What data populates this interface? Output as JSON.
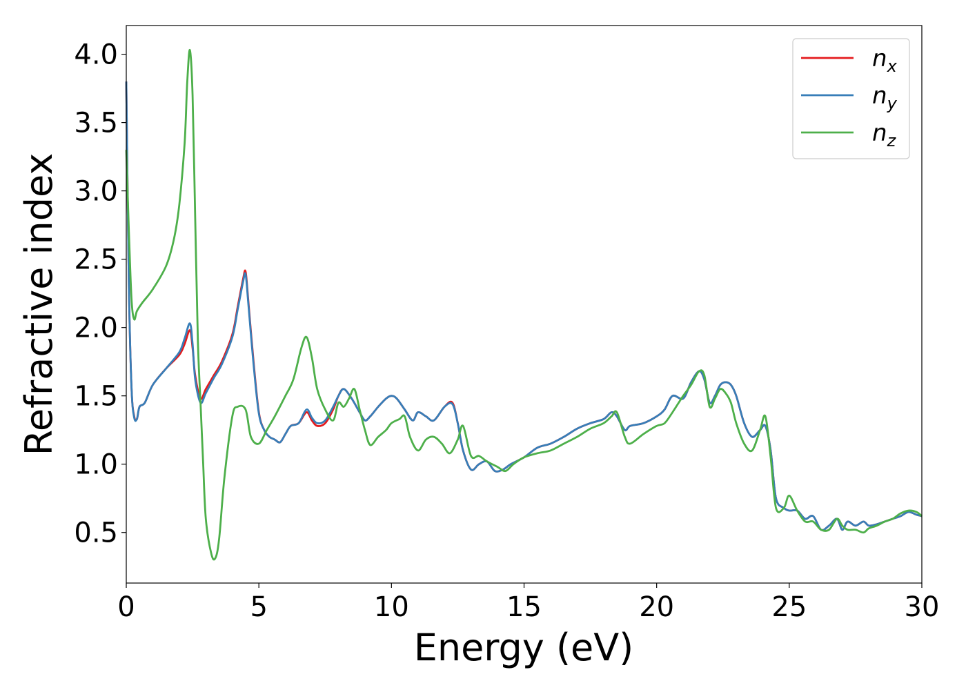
{
  "chart_data": {
    "type": "line",
    "xlabel": "Energy (eV)",
    "ylabel": "Refractive index",
    "xlim": [
      0,
      30
    ],
    "ylim": [
      0.13,
      4.21
    ],
    "xticks": [
      "0",
      "5",
      "10",
      "15",
      "20",
      "25",
      "30"
    ],
    "yticks": [
      "0.5",
      "1.0",
      "1.5",
      "2.0",
      "2.5",
      "3.0",
      "3.5",
      "4.0"
    ],
    "grid": false,
    "legend_position": "top-right",
    "series": [
      {
        "name": "n_x",
        "symbol": "n",
        "subscript": "x",
        "color": "#e41a1c",
        "x": [
          0,
          0.1,
          0.2,
          0.3,
          0.4,
          0.5,
          0.7,
          1.0,
          1.5,
          2.0,
          2.2,
          2.4,
          2.5,
          2.6,
          2.8,
          3.0,
          3.3,
          3.6,
          4.0,
          4.2,
          4.4,
          4.5,
          4.6,
          4.8,
          5.0,
          5.2,
          5.4,
          5.6,
          5.8,
          6.0,
          6.2,
          6.5,
          6.8,
          7.0,
          7.2,
          7.5,
          7.8,
          8.0,
          8.2,
          8.5,
          8.8,
          9.0,
          9.2,
          9.5,
          9.8,
          10.0,
          10.2,
          10.5,
          10.8,
          11.0,
          11.3,
          11.6,
          12.0,
          12.3,
          12.5,
          12.7,
          13.0,
          13.3,
          13.6,
          13.9,
          14.2,
          14.5,
          15.0,
          15.5,
          16.0,
          16.5,
          17.0,
          17.5,
          18.0,
          18.3,
          18.5,
          18.8,
          19.0,
          19.5,
          20.0,
          20.3,
          20.6,
          21.0,
          21.3,
          21.6,
          21.8,
          22.0,
          22.2,
          22.4,
          22.6,
          22.8,
          23.0,
          23.3,
          23.6,
          23.9,
          24.1,
          24.3,
          24.5,
          24.8,
          25.0,
          25.3,
          25.6,
          25.9,
          26.2,
          26.5,
          26.8,
          27.0,
          27.2,
          27.5,
          27.8,
          28.0,
          28.3,
          28.6,
          28.9,
          29.2,
          29.5,
          29.8,
          30.0
        ],
        "y": [
          3.8,
          2.3,
          1.55,
          1.35,
          1.33,
          1.42,
          1.45,
          1.58,
          1.7,
          1.8,
          1.88,
          1.98,
          1.85,
          1.65,
          1.48,
          1.55,
          1.65,
          1.75,
          1.95,
          2.15,
          2.35,
          2.41,
          2.2,
          1.75,
          1.38,
          1.25,
          1.2,
          1.18,
          1.16,
          1.22,
          1.28,
          1.3,
          1.38,
          1.32,
          1.28,
          1.3,
          1.4,
          1.5,
          1.55,
          1.48,
          1.38,
          1.32,
          1.35,
          1.42,
          1.48,
          1.5,
          1.48,
          1.4,
          1.32,
          1.38,
          1.35,
          1.32,
          1.42,
          1.45,
          1.3,
          1.1,
          0.96,
          1.0,
          1.02,
          0.95,
          0.96,
          1.0,
          1.05,
          1.12,
          1.15,
          1.2,
          1.26,
          1.3,
          1.33,
          1.38,
          1.35,
          1.25,
          1.28,
          1.3,
          1.35,
          1.4,
          1.5,
          1.48,
          1.6,
          1.68,
          1.62,
          1.45,
          1.5,
          1.58,
          1.6,
          1.58,
          1.5,
          1.3,
          1.2,
          1.25,
          1.28,
          1.1,
          0.75,
          0.68,
          0.66,
          0.66,
          0.6,
          0.62,
          0.52,
          0.55,
          0.6,
          0.52,
          0.58,
          0.55,
          0.58,
          0.55,
          0.56,
          0.58,
          0.6,
          0.62,
          0.65,
          0.63,
          0.62
        ]
      },
      {
        "name": "n_y",
        "symbol": "n",
        "subscript": "y",
        "color": "#377eb8",
        "x": [
          0,
          0.1,
          0.2,
          0.3,
          0.4,
          0.5,
          0.7,
          1.0,
          1.5,
          2.0,
          2.2,
          2.4,
          2.5,
          2.6,
          2.8,
          3.0,
          3.3,
          3.6,
          4.0,
          4.2,
          4.4,
          4.5,
          4.6,
          4.8,
          5.0,
          5.2,
          5.4,
          5.6,
          5.8,
          6.0,
          6.2,
          6.5,
          6.8,
          7.0,
          7.2,
          7.5,
          7.8,
          8.0,
          8.2,
          8.5,
          8.8,
          9.0,
          9.2,
          9.5,
          9.8,
          10.0,
          10.2,
          10.5,
          10.8,
          11.0,
          11.3,
          11.6,
          12.0,
          12.3,
          12.5,
          12.7,
          13.0,
          13.3,
          13.6,
          13.9,
          14.2,
          14.5,
          15.0,
          15.5,
          16.0,
          16.5,
          17.0,
          17.5,
          18.0,
          18.3,
          18.5,
          18.8,
          19.0,
          19.5,
          20.0,
          20.3,
          20.6,
          21.0,
          21.3,
          21.6,
          21.8,
          22.0,
          22.2,
          22.4,
          22.6,
          22.8,
          23.0,
          23.3,
          23.6,
          23.9,
          24.1,
          24.3,
          24.5,
          24.8,
          25.0,
          25.3,
          25.6,
          25.9,
          26.2,
          26.5,
          26.8,
          27.0,
          27.2,
          27.5,
          27.8,
          28.0,
          28.3,
          28.6,
          28.9,
          29.2,
          29.5,
          29.8,
          30.0
        ],
        "y": [
          3.8,
          2.3,
          1.55,
          1.34,
          1.33,
          1.42,
          1.45,
          1.58,
          1.7,
          1.82,
          1.92,
          2.03,
          1.88,
          1.62,
          1.45,
          1.52,
          1.63,
          1.73,
          1.93,
          2.13,
          2.33,
          2.39,
          2.18,
          1.73,
          1.37,
          1.25,
          1.2,
          1.18,
          1.16,
          1.22,
          1.28,
          1.3,
          1.4,
          1.34,
          1.3,
          1.32,
          1.42,
          1.5,
          1.55,
          1.48,
          1.38,
          1.32,
          1.35,
          1.42,
          1.48,
          1.5,
          1.48,
          1.4,
          1.32,
          1.38,
          1.35,
          1.32,
          1.42,
          1.44,
          1.3,
          1.1,
          0.96,
          1.0,
          1.02,
          0.95,
          0.96,
          1.0,
          1.05,
          1.12,
          1.15,
          1.2,
          1.26,
          1.3,
          1.33,
          1.38,
          1.35,
          1.25,
          1.28,
          1.3,
          1.35,
          1.4,
          1.5,
          1.48,
          1.6,
          1.68,
          1.62,
          1.45,
          1.5,
          1.58,
          1.6,
          1.58,
          1.5,
          1.3,
          1.2,
          1.25,
          1.28,
          1.1,
          0.75,
          0.68,
          0.66,
          0.66,
          0.6,
          0.62,
          0.52,
          0.55,
          0.6,
          0.52,
          0.58,
          0.55,
          0.58,
          0.55,
          0.56,
          0.58,
          0.6,
          0.62,
          0.65,
          0.63,
          0.62
        ]
      },
      {
        "name": "n_z",
        "symbol": "n",
        "subscript": "z",
        "color": "#4daf4a",
        "x": [
          0,
          0.1,
          0.2,
          0.3,
          0.4,
          0.6,
          1.0,
          1.5,
          1.8,
          2.0,
          2.2,
          2.3,
          2.4,
          2.5,
          2.6,
          2.7,
          2.8,
          2.9,
          3.0,
          3.2,
          3.35,
          3.5,
          3.7,
          4.0,
          4.2,
          4.5,
          4.7,
          5.0,
          5.3,
          5.6,
          6.0,
          6.3,
          6.6,
          6.8,
          7.0,
          7.2,
          7.5,
          7.8,
          8.0,
          8.2,
          8.4,
          8.6,
          8.8,
          9.0,
          9.2,
          9.5,
          9.8,
          10.0,
          10.3,
          10.5,
          10.7,
          11.0,
          11.3,
          11.6,
          11.9,
          12.2,
          12.5,
          12.7,
          13.0,
          13.3,
          13.6,
          14.0,
          14.3,
          14.6,
          15.0,
          15.5,
          16.0,
          16.5,
          17.0,
          17.5,
          18.0,
          18.3,
          18.5,
          18.8,
          19.0,
          19.5,
          20.0,
          20.3,
          20.6,
          21.0,
          21.3,
          21.6,
          21.8,
          22.0,
          22.2,
          22.4,
          22.6,
          22.8,
          23.0,
          23.3,
          23.6,
          23.9,
          24.1,
          24.3,
          24.5,
          24.8,
          25.0,
          25.3,
          25.6,
          25.9,
          26.2,
          26.5,
          26.8,
          27.0,
          27.2,
          27.5,
          27.8,
          28.0,
          28.3,
          28.6,
          28.9,
          29.2,
          29.5,
          29.8,
          30.0
        ],
        "y": [
          3.3,
          2.7,
          2.2,
          2.06,
          2.12,
          2.18,
          2.28,
          2.45,
          2.65,
          2.9,
          3.35,
          3.8,
          4.03,
          3.7,
          2.8,
          1.9,
          1.45,
          1.0,
          0.6,
          0.35,
          0.31,
          0.45,
          0.9,
          1.35,
          1.42,
          1.4,
          1.2,
          1.15,
          1.25,
          1.35,
          1.5,
          1.62,
          1.85,
          1.93,
          1.78,
          1.55,
          1.4,
          1.32,
          1.45,
          1.42,
          1.48,
          1.55,
          1.4,
          1.25,
          1.14,
          1.2,
          1.25,
          1.3,
          1.33,
          1.35,
          1.2,
          1.1,
          1.18,
          1.2,
          1.15,
          1.08,
          1.18,
          1.28,
          1.06,
          1.06,
          1.02,
          0.98,
          0.95,
          1.0,
          1.05,
          1.08,
          1.1,
          1.15,
          1.2,
          1.26,
          1.3,
          1.35,
          1.38,
          1.2,
          1.15,
          1.22,
          1.28,
          1.3,
          1.38,
          1.5,
          1.58,
          1.68,
          1.65,
          1.42,
          1.48,
          1.55,
          1.52,
          1.45,
          1.3,
          1.15,
          1.1,
          1.25,
          1.35,
          1.05,
          0.68,
          0.68,
          0.77,
          0.66,
          0.58,
          0.58,
          0.52,
          0.52,
          0.6,
          0.55,
          0.52,
          0.52,
          0.5,
          0.53,
          0.55,
          0.58,
          0.6,
          0.64,
          0.66,
          0.65,
          0.62
        ]
      }
    ]
  }
}
